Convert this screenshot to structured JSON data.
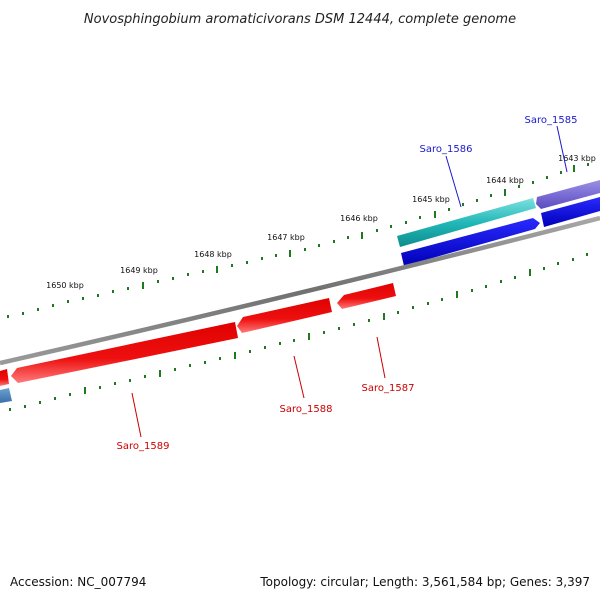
{
  "title": "Novosphingobium aromaticivorans DSM 12444, complete genome",
  "footer": {
    "accession": "Accession: NC_007794",
    "summary": "Topology: circular; Length: 3,561,584 bp; Genes: 3,397"
  },
  "ticks": {
    "t1643": "1643 kbp",
    "t1644": "1644 kbp",
    "t1645": "1645 kbp",
    "t1646": "1646 kbp",
    "t1647": "1647 kbp",
    "t1648": "1648 kbp",
    "t1649": "1649 kbp",
    "t1650": "1650 kbp"
  },
  "genes": {
    "saro_1585": "Saro_1585",
    "saro_1586": "Saro_1586",
    "saro_1587": "Saro_1587",
    "saro_1588": "Saro_1588",
    "saro_1589": "Saro_1589"
  },
  "colors": {
    "forward_label": "#1a1acc",
    "reverse_label": "#cc0000",
    "tick": "#1f7a1f",
    "backbone": "#808080",
    "cyan_gene": "#22b8b8",
    "purple_gene": "#6a5acd",
    "blue_gene": "#0a0adf",
    "red_gene": "#e60000",
    "steel_gene": "#4682b4"
  }
}
